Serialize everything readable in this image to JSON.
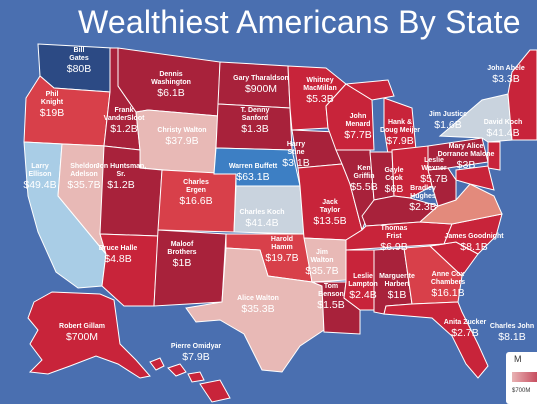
{
  "title": "Wealthiest Americans By State",
  "colors": {
    "background": "#4a6fb0",
    "deep_red": "#a8223b",
    "red": "#c8243a",
    "bright_red": "#d8404a",
    "light_pink": "#e8b9b6",
    "light_blue": "#a9cde6",
    "blue": "#3d7fc4",
    "gray": "#c9d3de",
    "navy": "#2c4a84"
  },
  "states": [
    {
      "name": "Bill Gates",
      "wealth": "$80B"
    },
    {
      "name": "Phil Knight",
      "wealth": "$19B"
    },
    {
      "name": "Dennis Washington",
      "wealth": "$6.1B"
    },
    {
      "name": "Frank VanderSloot",
      "wealth": "$1.2B"
    },
    {
      "name": "Christy Walton",
      "wealth": "$37.9B"
    },
    {
      "name": "Gary Tharaldson",
      "wealth": "$900M"
    },
    {
      "name": "T. Denny Sanford",
      "wealth": "$1.3B"
    },
    {
      "name": "Whitney MacMillan",
      "wealth": "$5.3B"
    },
    {
      "name": "Sheldon Adelson",
      "wealth": "$35.7B"
    },
    {
      "name": "Larry Ellison",
      "wealth": "$49.4B"
    },
    {
      "name": "Jon Huntsman, Sr.",
      "wealth": "$1.2B"
    },
    {
      "name": "Charles Ergen",
      "wealth": "$16.6B"
    },
    {
      "name": "Warren Buffett",
      "wealth": "$63.1B"
    },
    {
      "name": "Charles Koch",
      "wealth": "$41.4B"
    },
    {
      "name": "Harry Stine",
      "wealth": "$3.1B"
    },
    {
      "name": "John Menard",
      "wealth": "$7.7B"
    },
    {
      "name": "Hank & Doug Meijer",
      "wealth": "$7.9B"
    },
    {
      "name": "Jim Justice",
      "wealth": "$1.6B"
    },
    {
      "name": "John Abele",
      "wealth": "$3.3B"
    },
    {
      "name": "David Koch",
      "wealth": "$41.4B"
    },
    {
      "name": "Ken Griffin",
      "wealth": "$5.5B"
    },
    {
      "name": "Gayle Cook",
      "wealth": "$6B"
    },
    {
      "name": "Leslie Wexner",
      "wealth": "$5.7B"
    },
    {
      "name": "Mary Alice Dorrance Malone",
      "wealth": "$3B"
    },
    {
      "name": "Jack Taylor",
      "wealth": "$13.5B"
    },
    {
      "name": "Bradley Hughes",
      "wealth": "$2.3B"
    },
    {
      "name": "Thomas Frist",
      "wealth": "$6.9B"
    },
    {
      "name": "James Goodnight",
      "wealth": "$8.1B"
    },
    {
      "name": "Bruce Halle",
      "wealth": "$4.8B"
    },
    {
      "name": "Maloof Brothers",
      "wealth": "$1B"
    },
    {
      "name": "Harold Hamm",
      "wealth": "$19.7B"
    },
    {
      "name": "Jim Walton",
      "wealth": "$35.7B"
    },
    {
      "name": "Alice Walton",
      "wealth": "$35.3B"
    },
    {
      "name": "Tom Benson",
      "wealth": "$1.5B"
    },
    {
      "name": "Leslie Lampton",
      "wealth": "$2.4B"
    },
    {
      "name": "Marguerite Harbert",
      "wealth": "$1B"
    },
    {
      "name": "Anne Cox Chambers",
      "wealth": "$16.1B"
    },
    {
      "name": "Anita Zucker",
      "wealth": "$2.7B"
    },
    {
      "name": "Charles John",
      "wealth": "$8.1B"
    },
    {
      "name": "Robert Gillam",
      "wealth": "$700M"
    },
    {
      "name": "Pierre Omidyar",
      "wealth": "$7.9B"
    }
  ],
  "legend": {
    "label": "M",
    "min": "$700M"
  }
}
